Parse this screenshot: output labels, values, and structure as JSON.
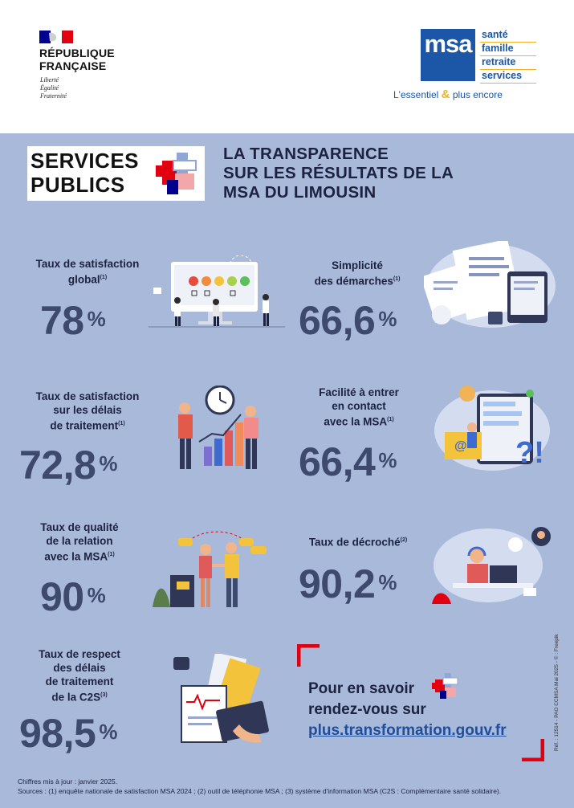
{
  "header": {
    "republic_name_line1": "RÉPUBLIQUE",
    "republic_name_line2": "FRANÇAISE",
    "motto_liberte": "Liberté",
    "motto_egalite": "Égalité",
    "motto_fraternite": "Fraternité",
    "msa_logo_text": "msa",
    "msa_words": [
      "santé",
      "famille",
      "retraite",
      "services"
    ],
    "msa_tagline_part1": "L'essentiel ",
    "msa_tagline_amp": "&",
    "msa_tagline_part2": " plus encore"
  },
  "badge": {
    "line1": "SERVICES",
    "line2": "PUBLICS"
  },
  "title": {
    "line1": "LA TRANSPARENCE",
    "line2": "SUR LES RÉSULTATS DE LA",
    "line3": "MSA DU LIMOUSIN"
  },
  "stats": {
    "s1": {
      "label1": "Taux de satisfaction",
      "label2": "global",
      "note": "(1)",
      "value": "78",
      "unit": "%"
    },
    "s2": {
      "label1": "Simplicité",
      "label2": "des démarches",
      "note": "(1)",
      "value": "66,6",
      "unit": "%"
    },
    "s3": {
      "label1": "Taux de satisfaction",
      "label2": "sur les délais",
      "label3": "de traitement",
      "note": "(1)",
      "value": "72,8",
      "unit": "%"
    },
    "s4": {
      "label1": "Facilité à entrer",
      "label2": "en contact",
      "label3": "avec la MSA",
      "note": "(1)",
      "value": "66,4",
      "unit": "%"
    },
    "s5": {
      "label1": "Taux de qualité",
      "label2": "de la relation",
      "label3": "avec la MSA",
      "note": "(1)",
      "value": "90",
      "unit": "%"
    },
    "s6": {
      "label1": "Taux de décroché",
      "note": "(2)",
      "value": "90,2",
      "unit": "%"
    },
    "s7": {
      "label1": "Taux de respect",
      "label2": "des délais",
      "label3": "de traitement",
      "label4": "de la C2S",
      "note": "(3)",
      "value": "98,5",
      "unit": "%"
    }
  },
  "cta": {
    "line1": "Pour en savoir",
    "line2": "rendez-vous sur",
    "link": "plus.transformation.gouv.fr"
  },
  "vertical_credit": "Réf. : 12514 - PAO CCMSA Mai 2025 - © : Freepik",
  "footer": {
    "updated": "Chiffres mis à jour : janvier 2025.",
    "sources": "Sources : (1) enquête nationale de satisfaction MSA 2024 ; (2) outil de téléphonie MSA ; (3) système d'information MSA (C2S : Complémentaire santé solidaire)."
  },
  "colors": {
    "background": "#a9b9da",
    "value_text": "#3e4a6d",
    "msa_blue": "#1b56a7",
    "msa_yellow": "#f0b323",
    "marianne_red": "#e1000f",
    "link_blue": "#1e4e9c"
  }
}
